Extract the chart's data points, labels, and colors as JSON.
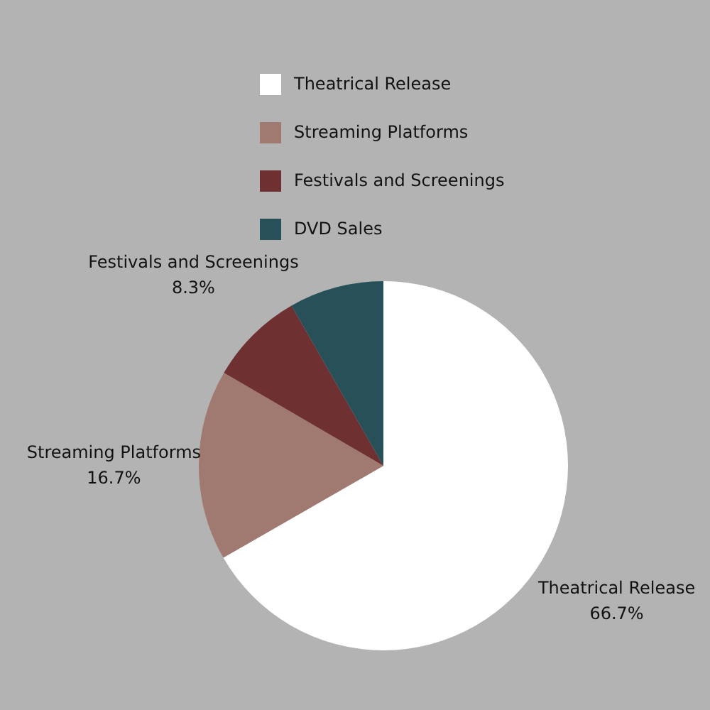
{
  "chart_data": {
    "type": "pie",
    "categories": [
      "Theatrical Release",
      "Streaming Platforms",
      "Festivals and Screenings",
      "DVD Sales"
    ],
    "values": [
      66.7,
      16.7,
      8.3,
      8.3
    ],
    "colors": [
      "#ffffff",
      "#a07a70",
      "#6e3030",
      "#275058"
    ],
    "value_labels": [
      "66.7%",
      "16.7%",
      "8.3%",
      null
    ],
    "legend": "top"
  }
}
